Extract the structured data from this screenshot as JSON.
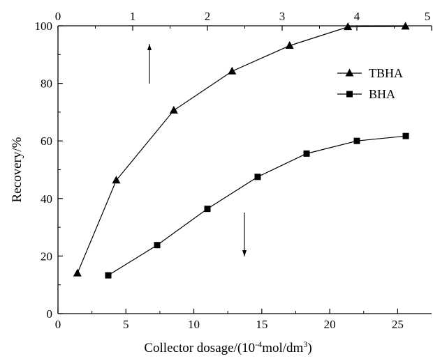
{
  "chart_data": {
    "type": "line",
    "title": "",
    "xlabel": "Collector dosage/(10",
    "xlabel_exponent": "-4",
    "xlabel_unit": "mol/dm",
    "xlabel_unit_exponent": "3",
    "xlabel_close": ")",
    "ylabel": "Recovery/%",
    "xlim": [
      0,
      27.5
    ],
    "ylim": [
      0,
      100
    ],
    "x_ticks": [
      0,
      5,
      10,
      15,
      20,
      25
    ],
    "x_tick_labels": [
      "0",
      "5",
      "10",
      "15",
      "20",
      "25"
    ],
    "y_ticks": [
      0,
      20,
      40,
      60,
      80,
      100
    ],
    "y_tick_labels": [
      "0",
      "20",
      "40",
      "60",
      "80",
      "100"
    ],
    "top_axis": {
      "ticks": [
        0,
        1,
        2,
        3,
        4,
        5
      ],
      "tick_labels": [
        "0",
        "1",
        "2",
        "3",
        "4",
        "5"
      ],
      "xlim": [
        0,
        5
      ]
    },
    "grid": false,
    "legend_position": "top-right",
    "colors": {
      "series": "#000000",
      "axis": "#000000"
    },
    "series": [
      {
        "name": "TBHA",
        "marker": "triangle",
        "axis": "top",
        "x": [
          0.26,
          0.78,
          1.55,
          2.33,
          3.1,
          3.88,
          4.65
        ],
        "values": [
          14,
          46.3,
          70.6,
          84.2,
          93.1,
          99.6,
          99.8
        ]
      },
      {
        "name": "BHA",
        "marker": "square",
        "axis": "bottom",
        "x": [
          3.7,
          7.3,
          11.0,
          14.7,
          18.3,
          22.0,
          25.6
        ],
        "values": [
          13.3,
          23.8,
          36.4,
          47.5,
          55.6,
          60,
          61.7
        ]
      }
    ]
  }
}
